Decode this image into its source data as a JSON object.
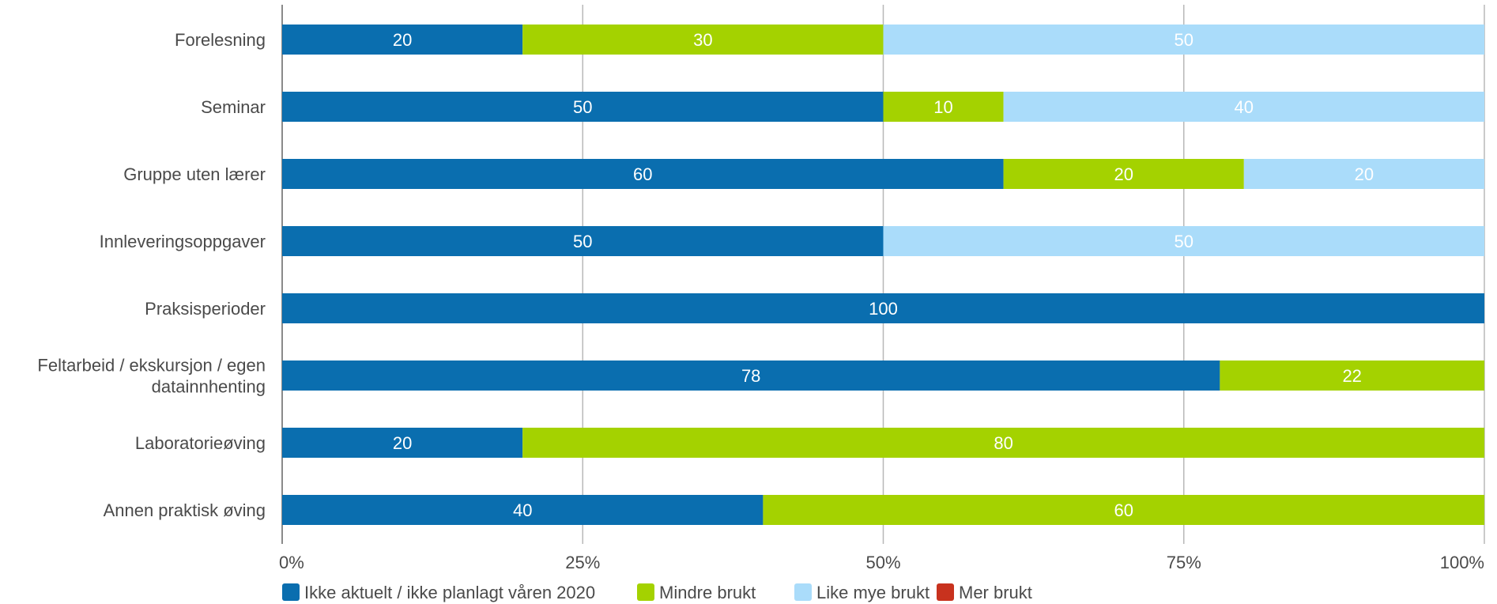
{
  "chart_data": {
    "type": "bar",
    "orientation": "horizontal",
    "stacked": true,
    "categories": [
      "Forelesning",
      "Seminar",
      "Gruppe uten lærer",
      "Innleveringsoppgaver",
      "Praksisperioder",
      "Feltarbeid / ekskursjon / egen datainnhenting",
      "Laboratorieøving",
      "Annen praktisk øving"
    ],
    "category_lines": [
      [
        "Forelesning"
      ],
      [
        "Seminar"
      ],
      [
        "Gruppe uten lærer"
      ],
      [
        "Innleveringsoppgaver"
      ],
      [
        "Praksisperioder"
      ],
      [
        "Feltarbeid / ekskursjon / egen",
        "datainnhenting"
      ],
      [
        "Laboratorieøving"
      ],
      [
        "Annen praktisk øving"
      ]
    ],
    "series": [
      {
        "name": "Ikke aktuelt / ikke planlagt våren 2020",
        "color": "#0a6eaf",
        "values": [
          20,
          50,
          60,
          50,
          100,
          78,
          20,
          40
        ]
      },
      {
        "name": "Mindre brukt",
        "color": "#a4d200",
        "values": [
          30,
          10,
          20,
          0,
          0,
          22,
          80,
          60
        ]
      },
      {
        "name": "Like mye brukt",
        "color": "#aadcfa",
        "values": [
          50,
          40,
          20,
          50,
          0,
          0,
          0,
          0
        ]
      },
      {
        "name": "Mer brukt",
        "color": "#c8321e",
        "values": [
          0,
          0,
          0,
          0,
          0,
          0,
          0,
          0
        ]
      }
    ],
    "xlim": [
      0,
      100
    ],
    "x_ticks": [
      "0%",
      "25%",
      "50%",
      "75%",
      "100%"
    ],
    "legend_position": "bottom-left",
    "grid": true
  }
}
